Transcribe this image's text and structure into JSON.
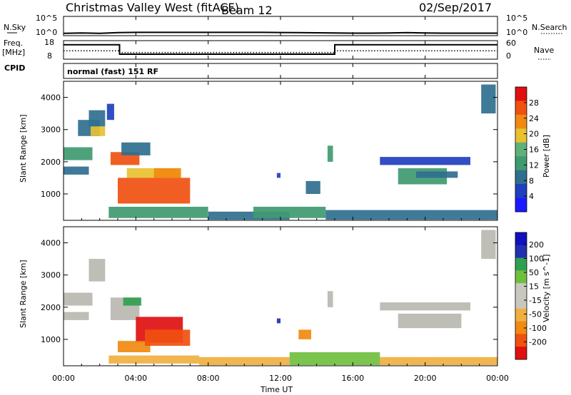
{
  "header": {
    "title": "Christmas Valley West (fitACF)",
    "beam": "Beam 12",
    "date": "02/Sep/2017"
  },
  "top_panels": {
    "nsky_label": "N.Sky",
    "nsearch_label": "N.Search",
    "noise_tick_top": "10^5",
    "noise_tick_bottom": "10^0",
    "freq_label_1": "Freq.",
    "freq_label_2": "[MHz]",
    "freq_ticks": [
      "18",
      "8"
    ],
    "nave_ticks": [
      "60",
      "0"
    ],
    "nave_label": "Nave",
    "cpid_label": "CPID",
    "cpid_value": "normal (fast) 151 RF"
  },
  "colors": {
    "power_scale": [
      "#1a1aff",
      "#1f3fbf",
      "#2f6f8f",
      "#3f9a70",
      "#5fb07a",
      "#e8c030",
      "#f08a10",
      "#f05010",
      "#e01010"
    ],
    "velocity_scale": [
      "#e01010",
      "#f05010",
      "#f08a10",
      "#f0b040",
      "#c8c8c0",
      "#c8c8c0",
      "#70c040",
      "#30a050",
      "#2030b0",
      "#1010c0"
    ],
    "ground_scatter": "#b8b8b0"
  },
  "chart_data": [
    {
      "type": "line",
      "panel": "noise",
      "ylabel_left": "N.Sky",
      "ylabel_right": "N.Search",
      "ytick_labels": [
        "10^5",
        "10^0"
      ],
      "x_hours": [
        0,
        1,
        2,
        3,
        4,
        5,
        6,
        7,
        8,
        9,
        10,
        11,
        12,
        13,
        14,
        15,
        16,
        17,
        18,
        19,
        20,
        21,
        22,
        23,
        24
      ],
      "y_log10": [
        0.3,
        0.4,
        0.3,
        0.5,
        0.6,
        0.6,
        0.6,
        0.6,
        0.6,
        0.6,
        0.6,
        0.6,
        0.55,
        0.5,
        0.45,
        0.4,
        0.35,
        0.35,
        0.4,
        0.5,
        0.4,
        0.35,
        0.35,
        0.35,
        0.35
      ]
    },
    {
      "type": "line",
      "panel": "frequency",
      "ylabel": "Freq. [MHz]",
      "ylim": [
        8,
        18
      ],
      "right_label": "Nave",
      "right_ylim": [
        0,
        60
      ],
      "series": [
        {
          "x_hours": [
            0,
            3.1,
            3.1,
            15.0,
            15.0,
            24
          ],
          "values": [
            16,
            16,
            10.5,
            10.5,
            16,
            16
          ]
        },
        {
          "x_hours": [
            0,
            3.1,
            3.1,
            15.0,
            15.0,
            24
          ],
          "values": [
            12.5,
            12.5,
            11.5,
            11.5,
            12.5,
            12.5
          ]
        }
      ]
    },
    {
      "type": "heatmap",
      "panel": "power",
      "xlabel": "",
      "ylabel": "Slant Range [km]",
      "xlim": [
        0,
        24
      ],
      "ylim": [
        180,
        4500
      ],
      "yticks": [
        1000,
        2000,
        3000,
        4000
      ],
      "colorbar_label": "Power [dB]",
      "colorbar_ticks": [
        4,
        8,
        12,
        16,
        20,
        24,
        28
      ],
      "clim": [
        0,
        32
      ],
      "regions": [
        {
          "t0": 0.0,
          "t1": 1.6,
          "r0": 2050,
          "r1": 2450,
          "v": 13
        },
        {
          "t0": 0.0,
          "t1": 1.4,
          "r0": 1600,
          "r1": 1850,
          "v": 10
        },
        {
          "t0": 0.8,
          "t1": 2.0,
          "r0": 2800,
          "r1": 3300,
          "v": 9
        },
        {
          "t0": 1.5,
          "t1": 2.3,
          "r0": 2800,
          "r1": 3100,
          "v": 18
        },
        {
          "t0": 1.4,
          "t1": 2.3,
          "r0": 3100,
          "r1": 3600,
          "v": 10
        },
        {
          "t0": 2.4,
          "t1": 2.8,
          "r0": 3300,
          "r1": 3800,
          "v": 6
        },
        {
          "t0": 2.6,
          "t1": 4.2,
          "r0": 1900,
          "r1": 2300,
          "v": 26
        },
        {
          "t0": 3.2,
          "t1": 4.8,
          "r0": 2200,
          "r1": 2600,
          "v": 10
        },
        {
          "t0": 3.5,
          "t1": 6.4,
          "r0": 1500,
          "r1": 1800,
          "v": 19
        },
        {
          "t0": 3.0,
          "t1": 7.0,
          "r0": 700,
          "r1": 1500,
          "v": 28
        },
        {
          "t0": 5.0,
          "t1": 6.5,
          "r0": 1500,
          "r1": 1800,
          "v": 22
        },
        {
          "t0": 2.5,
          "t1": 8.0,
          "r0": 250,
          "r1": 600,
          "v": 11
        },
        {
          "t0": 8.0,
          "t1": 12.5,
          "r0": 200,
          "r1": 450,
          "v": 9
        },
        {
          "t0": 10.5,
          "t1": 14.5,
          "r0": 250,
          "r1": 600,
          "v": 14
        },
        {
          "t0": 14.5,
          "t1": 24.0,
          "r0": 200,
          "r1": 500,
          "v": 8
        },
        {
          "t0": 13.4,
          "t1": 14.2,
          "r0": 1000,
          "r1": 1400,
          "v": 9
        },
        {
          "t0": 11.8,
          "t1": 12.0,
          "r0": 1500,
          "r1": 1650,
          "v": 6
        },
        {
          "t0": 14.6,
          "t1": 14.9,
          "r0": 2000,
          "r1": 2500,
          "v": 11
        },
        {
          "t0": 18.5,
          "t1": 21.2,
          "r0": 1300,
          "r1": 1800,
          "v": 13
        },
        {
          "t0": 19.5,
          "t1": 21.8,
          "r0": 1500,
          "r1": 1700,
          "v": 10
        },
        {
          "t0": 17.5,
          "t1": 22.5,
          "r0": 1900,
          "r1": 2150,
          "v": 6
        },
        {
          "t0": 23.1,
          "t1": 23.9,
          "r0": 3500,
          "r1": 4400,
          "v": 9
        }
      ]
    },
    {
      "type": "heatmap",
      "panel": "velocity",
      "xlabel": "Time UT",
      "ylabel": "Slant Range [km]",
      "xlim": [
        0,
        24
      ],
      "ylim": [
        180,
        4500
      ],
      "xtick_labels": [
        "00:00",
        "04:00",
        "08:00",
        "12:00",
        "16:00",
        "20:00",
        "00:00"
      ],
      "yticks": [
        1000,
        2000,
        3000,
        4000
      ],
      "colorbar_label": "Velocity [m s^-1]",
      "colorbar_ticks": [
        200,
        100,
        50,
        15,
        -15,
        -50,
        -100,
        -200
      ],
      "clim": [
        -250,
        250
      ],
      "regions": [
        {
          "t0": 0.0,
          "t1": 1.6,
          "r0": 2050,
          "r1": 2450,
          "v": 0
        },
        {
          "t0": 0.0,
          "t1": 1.4,
          "r0": 1600,
          "r1": 1850,
          "v": 0
        },
        {
          "t0": 1.4,
          "t1": 2.3,
          "r0": 2800,
          "r1": 3500,
          "v": 0
        },
        {
          "t0": 2.6,
          "t1": 4.2,
          "r0": 1600,
          "r1": 2300,
          "v": 0
        },
        {
          "t0": 3.3,
          "t1": 4.3,
          "r0": 2050,
          "r1": 2300,
          "v": 60
        },
        {
          "t0": 4.0,
          "t1": 6.6,
          "r0": 900,
          "r1": 1700,
          "v": -220
        },
        {
          "t0": 3.0,
          "t1": 4.8,
          "r0": 600,
          "r1": 950,
          "v": -90
        },
        {
          "t0": 4.5,
          "t1": 7.0,
          "r0": 800,
          "r1": 1300,
          "v": -160
        },
        {
          "t0": 2.5,
          "t1": 7.5,
          "r0": 250,
          "r1": 500,
          "v": -30
        },
        {
          "t0": 7.5,
          "t1": 12.5,
          "r0": 200,
          "r1": 450,
          "v": -30
        },
        {
          "t0": 12.5,
          "t1": 17.5,
          "r0": 200,
          "r1": 600,
          "v": 40
        },
        {
          "t0": 17.5,
          "t1": 24.0,
          "r0": 200,
          "r1": 450,
          "v": -25
        },
        {
          "t0": 13.0,
          "t1": 13.7,
          "r0": 1000,
          "r1": 1300,
          "v": -70
        },
        {
          "t0": 11.8,
          "t1": 12.0,
          "r0": 1500,
          "r1": 1650,
          "v": 150
        },
        {
          "t0": 14.6,
          "t1": 14.9,
          "r0": 2000,
          "r1": 2500,
          "v": 0
        },
        {
          "t0": 18.5,
          "t1": 22.0,
          "r0": 1350,
          "r1": 1800,
          "v": 0
        },
        {
          "t0": 17.5,
          "t1": 22.5,
          "r0": 1900,
          "r1": 2150,
          "v": 0
        },
        {
          "t0": 23.1,
          "t1": 23.9,
          "r0": 3500,
          "r1": 4400,
          "v": 0
        }
      ]
    }
  ]
}
